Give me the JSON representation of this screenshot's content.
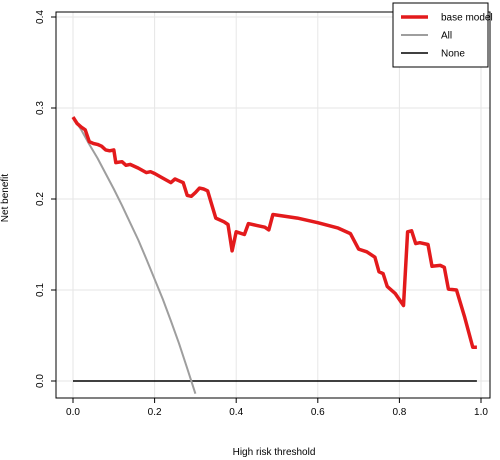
{
  "chart_data": {
    "type": "line",
    "title": "",
    "xlabel": "High risk threshold",
    "ylabel": "Net benefit",
    "xlim": [
      0,
      1
    ],
    "ylim": [
      0,
      0.4
    ],
    "x_ticks": [
      0.0,
      0.2,
      0.4,
      0.6,
      0.8,
      1.0
    ],
    "x_tick_labels": [
      "0.0",
      "0.2",
      "0.4",
      "0.6",
      "0.8",
      "1.0"
    ],
    "y_ticks": [
      0.0,
      0.1,
      0.2,
      0.3,
      0.4
    ],
    "y_tick_labels": [
      "0.0",
      "0.1",
      "0.2",
      "0.3",
      "0.4"
    ],
    "grid": true,
    "legend_position": "top-right",
    "series": [
      {
        "name": "base model",
        "color": "#e31a1c",
        "points": [
          [
            0.0,
            0.29
          ],
          [
            0.01,
            0.283
          ],
          [
            0.02,
            0.279
          ],
          [
            0.03,
            0.276
          ],
          [
            0.04,
            0.263
          ],
          [
            0.05,
            0.261
          ],
          [
            0.06,
            0.26
          ],
          [
            0.07,
            0.258
          ],
          [
            0.08,
            0.254
          ],
          [
            0.09,
            0.253
          ],
          [
            0.1,
            0.254
          ],
          [
            0.105,
            0.24
          ],
          [
            0.12,
            0.241
          ],
          [
            0.13,
            0.237
          ],
          [
            0.14,
            0.238
          ],
          [
            0.16,
            0.234
          ],
          [
            0.18,
            0.229
          ],
          [
            0.19,
            0.23
          ],
          [
            0.2,
            0.228
          ],
          [
            0.22,
            0.223
          ],
          [
            0.24,
            0.218
          ],
          [
            0.25,
            0.222
          ],
          [
            0.26,
            0.22
          ],
          [
            0.27,
            0.218
          ],
          [
            0.28,
            0.204
          ],
          [
            0.29,
            0.203
          ],
          [
            0.3,
            0.207
          ],
          [
            0.31,
            0.212
          ],
          [
            0.32,
            0.211
          ],
          [
            0.33,
            0.209
          ],
          [
            0.34,
            0.194
          ],
          [
            0.35,
            0.179
          ],
          [
            0.37,
            0.175
          ],
          [
            0.38,
            0.172
          ],
          [
            0.39,
            0.143
          ],
          [
            0.4,
            0.164
          ],
          [
            0.42,
            0.161
          ],
          [
            0.43,
            0.173
          ],
          [
            0.45,
            0.171
          ],
          [
            0.47,
            0.169
          ],
          [
            0.48,
            0.166
          ],
          [
            0.49,
            0.183
          ],
          [
            0.55,
            0.179
          ],
          [
            0.6,
            0.174
          ],
          [
            0.65,
            0.168
          ],
          [
            0.68,
            0.162
          ],
          [
            0.7,
            0.145
          ],
          [
            0.72,
            0.142
          ],
          [
            0.74,
            0.136
          ],
          [
            0.75,
            0.12
          ],
          [
            0.76,
            0.118
          ],
          [
            0.77,
            0.104
          ],
          [
            0.79,
            0.096
          ],
          [
            0.81,
            0.083
          ],
          [
            0.82,
            0.164
          ],
          [
            0.83,
            0.165
          ],
          [
            0.84,
            0.151
          ],
          [
            0.85,
            0.152
          ],
          [
            0.87,
            0.15
          ],
          [
            0.88,
            0.126
          ],
          [
            0.9,
            0.127
          ],
          [
            0.91,
            0.125
          ],
          [
            0.92,
            0.101
          ],
          [
            0.94,
            0.1
          ],
          [
            0.96,
            0.07
          ],
          [
            0.98,
            0.037
          ],
          [
            0.99,
            0.037
          ]
        ]
      },
      {
        "name": "All",
        "color": "#9e9e9e",
        "points": [
          [
            0.0,
            0.29
          ],
          [
            0.02,
            0.276
          ],
          [
            0.04,
            0.26
          ],
          [
            0.06,
            0.245
          ],
          [
            0.08,
            0.228
          ],
          [
            0.1,
            0.211
          ],
          [
            0.12,
            0.193
          ],
          [
            0.14,
            0.174
          ],
          [
            0.16,
            0.155
          ],
          [
            0.18,
            0.134
          ],
          [
            0.2,
            0.112
          ],
          [
            0.22,
            0.09
          ],
          [
            0.24,
            0.066
          ],
          [
            0.26,
            0.041
          ],
          [
            0.28,
            0.014
          ],
          [
            0.3,
            -0.014
          ]
        ]
      },
      {
        "name": "None",
        "color": "#000000",
        "points": [
          [
            0.0,
            0.0
          ],
          [
            0.99,
            0.0
          ]
        ]
      }
    ]
  }
}
